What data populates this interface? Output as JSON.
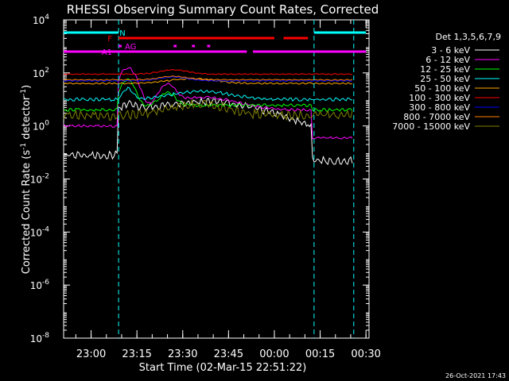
{
  "chart_data": {
    "type": "line",
    "title": "RHESSI Observing Summary Count Rates, Corrected",
    "xlabel": "Start Time (02-Mar-15 22:51:22)",
    "ylabel_main": "Corrected Count Rate (s",
    "ylabel_sup1": "-1",
    "ylabel_mid": " detector",
    "ylabel_sup2": "-1",
    "ylabel_end": ")",
    "yscale": "log",
    "ylim": [
      1e-08,
      10000.0
    ],
    "xlim": [
      "22:51",
      "00:31"
    ],
    "y_ticks": [
      {
        "value": 10000.0,
        "base": "10",
        "exp": "4"
      },
      {
        "value": 100.0,
        "base": "10",
        "exp": "2"
      },
      {
        "value": 1.0,
        "base": "10",
        "exp": "0"
      },
      {
        "value": 0.01,
        "base": "10",
        "exp": "-2"
      },
      {
        "value": 0.0001,
        "base": "10",
        "exp": "-4"
      },
      {
        "value": 1e-06,
        "base": "10",
        "exp": "-6"
      },
      {
        "value": 1e-08,
        "base": "10",
        "exp": "-8"
      }
    ],
    "x_ticks": [
      "23:00",
      "23:15",
      "23:30",
      "23:45",
      "00:00",
      "00:15",
      "00:30"
    ],
    "legend_title": "Det 1,3,5,6,7,9",
    "series": [
      {
        "name": "3 - 6 keV",
        "color": "#ffffff"
      },
      {
        "name": "6 - 12 keV",
        "color": "#ff00ff"
      },
      {
        "name": "12 - 25 keV",
        "color": "#00ff00"
      },
      {
        "name": "25 - 50 keV",
        "color": "#00ffff"
      },
      {
        "name": "50 - 100 keV",
        "color": "#ffa500"
      },
      {
        "name": "100 - 300 keV",
        "color": "#ff0000"
      },
      {
        "name": "300 - 800 keV",
        "color": "#0000ff"
      },
      {
        "name": "800 - 7000 keV",
        "color": "#ff7f00"
      },
      {
        "name": "7000 - 15000 keV",
        "color": "#808000"
      }
    ],
    "flags": [
      {
        "label": "N",
        "color": "#00ffff"
      },
      {
        "label": "F",
        "color": "#ff0000"
      },
      {
        "label": "AG",
        "color": "#ff00ff"
      },
      {
        "label": "A1",
        "color": "#ff00ff"
      }
    ]
  },
  "footer": {
    "timestamp": "26-Oct-2021 17:43"
  }
}
